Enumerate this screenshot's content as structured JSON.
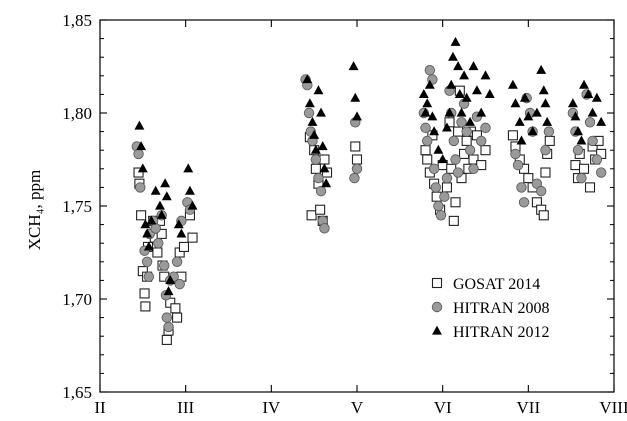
{
  "chart_data": {
    "type": "scatter",
    "title": "",
    "xlabel": "",
    "ylabel": "XCH₄, ppm",
    "ylim": [
      1.65,
      1.85
    ],
    "y_ticks": [
      "1,65",
      "1,70",
      "1,75",
      "1,80",
      "1,85"
    ],
    "x_ticks": [
      "II",
      "III",
      "IV",
      "V",
      "VI",
      "VII",
      "VIII"
    ],
    "xlim": [
      2,
      8
    ],
    "grid": false,
    "legend_position": "bottom-right",
    "series": [
      {
        "name": "GOSAT 2014",
        "marker": "square-open",
        "points": [
          [
            2.45,
            1.768
          ],
          [
            2.46,
            1.762
          ],
          [
            2.48,
            1.745
          ],
          [
            2.5,
            1.715
          ],
          [
            2.52,
            1.703
          ],
          [
            2.53,
            1.696
          ],
          [
            2.55,
            1.712
          ],
          [
            2.56,
            1.728
          ],
          [
            2.62,
            1.742
          ],
          [
            2.64,
            1.733
          ],
          [
            2.67,
            1.725
          ],
          [
            2.7,
            1.742
          ],
          [
            2.72,
            1.735
          ],
          [
            2.73,
            1.718
          ],
          [
            2.75,
            1.712
          ],
          [
            2.78,
            1.678
          ],
          [
            2.8,
            1.683
          ],
          [
            2.82,
            1.698
          ],
          [
            2.88,
            1.695
          ],
          [
            2.9,
            1.69
          ],
          [
            2.93,
            1.725
          ],
          [
            2.95,
            1.712
          ],
          [
            2.98,
            1.728
          ],
          [
            3.05,
            1.745
          ],
          [
            3.08,
            1.733
          ],
          [
            4.45,
            1.787
          ],
          [
            4.47,
            1.745
          ],
          [
            4.5,
            1.78
          ],
          [
            4.52,
            1.77
          ],
          [
            4.55,
            1.762
          ],
          [
            4.57,
            1.748
          ],
          [
            4.6,
            1.742
          ],
          [
            4.62,
            1.775
          ],
          [
            4.65,
            1.768
          ],
          [
            4.98,
            1.782
          ],
          [
            5.0,
            1.775
          ],
          [
            5.8,
            1.78
          ],
          [
            5.82,
            1.775
          ],
          [
            5.85,
            1.768
          ],
          [
            5.88,
            1.788
          ],
          [
            5.9,
            1.762
          ],
          [
            5.93,
            1.755
          ],
          [
            5.97,
            1.748
          ],
          [
            6.0,
            1.772
          ],
          [
            6.05,
            1.76
          ],
          [
            6.08,
            1.795
          ],
          [
            6.1,
            1.77
          ],
          [
            6.13,
            1.742
          ],
          [
            6.15,
            1.752
          ],
          [
            6.18,
            1.79
          ],
          [
            6.2,
            1.812
          ],
          [
            6.22,
            1.765
          ],
          [
            6.25,
            1.778
          ],
          [
            6.28,
            1.785
          ],
          [
            6.3,
            1.77
          ],
          [
            6.33,
            1.79
          ],
          [
            6.36,
            1.775
          ],
          [
            6.4,
            1.788
          ],
          [
            6.45,
            1.772
          ],
          [
            6.5,
            1.78
          ],
          [
            6.82,
            1.788
          ],
          [
            6.85,
            1.782
          ],
          [
            6.9,
            1.775
          ],
          [
            6.95,
            1.77
          ],
          [
            7.0,
            1.765
          ],
          [
            7.05,
            1.76
          ],
          [
            7.1,
            1.752
          ],
          [
            7.15,
            1.748
          ],
          [
            7.18,
            1.745
          ],
          [
            7.2,
            1.768
          ],
          [
            7.22,
            1.778
          ],
          [
            7.25,
            1.785
          ],
          [
            7.55,
            1.772
          ],
          [
            7.58,
            1.765
          ],
          [
            7.6,
            1.778
          ],
          [
            7.65,
            1.77
          ],
          [
            7.72,
            1.76
          ],
          [
            7.75,
            1.782
          ],
          [
            7.78,
            1.775
          ],
          [
            7.82,
            1.785
          ],
          [
            7.85,
            1.778
          ]
        ]
      },
      {
        "name": "HITRAN 2008",
        "marker": "circle-filled-gray",
        "points": [
          [
            2.43,
            1.782
          ],
          [
            2.45,
            1.778
          ],
          [
            2.47,
            1.76
          ],
          [
            2.52,
            1.726
          ],
          [
            2.55,
            1.72
          ],
          [
            2.57,
            1.712
          ],
          [
            2.58,
            1.735
          ],
          [
            2.62,
            1.742
          ],
          [
            2.65,
            1.738
          ],
          [
            2.68,
            1.73
          ],
          [
            2.72,
            1.745
          ],
          [
            2.75,
            1.718
          ],
          [
            2.77,
            1.702
          ],
          [
            2.78,
            1.69
          ],
          [
            2.8,
            1.685
          ],
          [
            2.82,
            1.71
          ],
          [
            2.86,
            1.712
          ],
          [
            2.9,
            1.72
          ],
          [
            2.93,
            1.708
          ],
          [
            2.95,
            1.742
          ],
          [
            3.02,
            1.752
          ],
          [
            3.05,
            1.748
          ],
          [
            4.4,
            1.818
          ],
          [
            4.42,
            1.815
          ],
          [
            4.44,
            1.8
          ],
          [
            4.46,
            1.79
          ],
          [
            4.48,
            1.785
          ],
          [
            4.52,
            1.775
          ],
          [
            4.55,
            1.765
          ],
          [
            4.58,
            1.758
          ],
          [
            4.6,
            1.742
          ],
          [
            4.62,
            1.738
          ],
          [
            4.98,
            1.795
          ],
          [
            5.0,
            1.77
          ],
          [
            4.97,
            1.765
          ],
          [
            5.78,
            1.8
          ],
          [
            5.8,
            1.792
          ],
          [
            5.82,
            1.785
          ],
          [
            5.85,
            1.823
          ],
          [
            5.88,
            1.818
          ],
          [
            5.9,
            1.77
          ],
          [
            5.92,
            1.76
          ],
          [
            5.95,
            1.75
          ],
          [
            5.98,
            1.745
          ],
          [
            6.02,
            1.755
          ],
          [
            6.05,
            1.765
          ],
          [
            6.08,
            1.812
          ],
          [
            6.1,
            1.8
          ],
          [
            6.13,
            1.785
          ],
          [
            6.15,
            1.775
          ],
          [
            6.18,
            1.768
          ],
          [
            6.22,
            1.795
          ],
          [
            6.25,
            1.805
          ],
          [
            6.28,
            1.79
          ],
          [
            6.32,
            1.78
          ],
          [
            6.36,
            1.77
          ],
          [
            6.4,
            1.798
          ],
          [
            6.45,
            1.785
          ],
          [
            6.5,
            1.792
          ],
          [
            6.85,
            1.778
          ],
          [
            6.88,
            1.772
          ],
          [
            6.92,
            1.76
          ],
          [
            6.95,
            1.752
          ],
          [
            6.98,
            1.808
          ],
          [
            7.02,
            1.8
          ],
          [
            7.05,
            1.79
          ],
          [
            7.1,
            1.762
          ],
          [
            7.15,
            1.758
          ],
          [
            7.2,
            1.78
          ],
          [
            7.24,
            1.79
          ],
          [
            7.52,
            1.8
          ],
          [
            7.55,
            1.79
          ],
          [
            7.58,
            1.78
          ],
          [
            7.62,
            1.765
          ],
          [
            7.68,
            1.81
          ],
          [
            7.72,
            1.795
          ],
          [
            7.75,
            1.785
          ],
          [
            7.8,
            1.775
          ],
          [
            7.85,
            1.768
          ]
        ]
      },
      {
        "name": "HITRAN 2012",
        "marker": "triangle-filled",
        "points": [
          [
            2.46,
            1.793
          ],
          [
            2.48,
            1.782
          ],
          [
            2.5,
            1.77
          ],
          [
            2.53,
            1.74
          ],
          [
            2.55,
            1.735
          ],
          [
            2.57,
            1.728
          ],
          [
            2.6,
            1.742
          ],
          [
            2.65,
            1.758
          ],
          [
            2.7,
            1.75
          ],
          [
            2.72,
            1.745
          ],
          [
            2.76,
            1.762
          ],
          [
            2.78,
            1.755
          ],
          [
            2.8,
            1.704
          ],
          [
            2.82,
            1.71
          ],
          [
            2.92,
            1.74
          ],
          [
            2.95,
            1.735
          ],
          [
            3.03,
            1.77
          ],
          [
            3.05,
            1.758
          ],
          [
            3.08,
            1.75
          ],
          [
            4.42,
            1.818
          ],
          [
            4.45,
            1.805
          ],
          [
            4.48,
            1.795
          ],
          [
            4.5,
            1.788
          ],
          [
            4.52,
            1.78
          ],
          [
            4.55,
            1.812
          ],
          [
            4.58,
            1.8
          ],
          [
            4.6,
            1.782
          ],
          [
            4.62,
            1.77
          ],
          [
            4.64,
            1.762
          ],
          [
            4.96,
            1.825
          ],
          [
            4.98,
            1.808
          ],
          [
            5.0,
            1.798
          ],
          [
            5.78,
            1.81
          ],
          [
            5.8,
            1.8
          ],
          [
            5.82,
            1.805
          ],
          [
            5.85,
            1.815
          ],
          [
            5.88,
            1.798
          ],
          [
            5.9,
            1.79
          ],
          [
            5.95,
            1.78
          ],
          [
            6.0,
            1.775
          ],
          [
            6.05,
            1.792
          ],
          [
            6.08,
            1.8
          ],
          [
            6.1,
            1.815
          ],
          [
            6.12,
            1.83
          ],
          [
            6.15,
            1.838
          ],
          [
            6.18,
            1.825
          ],
          [
            6.2,
            1.81
          ],
          [
            6.22,
            1.8
          ],
          [
            6.25,
            1.82
          ],
          [
            6.28,
            1.808
          ],
          [
            6.32,
            1.795
          ],
          [
            6.36,
            1.825
          ],
          [
            6.4,
            1.812
          ],
          [
            6.45,
            1.8
          ],
          [
            6.5,
            1.82
          ],
          [
            6.55,
            1.81
          ],
          [
            6.82,
            1.815
          ],
          [
            6.85,
            1.805
          ],
          [
            6.9,
            1.795
          ],
          [
            6.92,
            1.785
          ],
          [
            6.96,
            1.808
          ],
          [
            7.0,
            1.798
          ],
          [
            7.05,
            1.79
          ],
          [
            7.1,
            1.8
          ],
          [
            7.15,
            1.823
          ],
          [
            7.18,
            1.812
          ],
          [
            7.2,
            1.805
          ],
          [
            7.22,
            1.795
          ],
          [
            7.52,
            1.805
          ],
          [
            7.55,
            1.798
          ],
          [
            7.58,
            1.79
          ],
          [
            7.62,
            1.785
          ],
          [
            7.65,
            1.815
          ],
          [
            7.7,
            1.81
          ],
          [
            7.75,
            1.8
          ],
          [
            7.8,
            1.808
          ],
          [
            7.85,
            1.795
          ]
        ]
      }
    ]
  }
}
